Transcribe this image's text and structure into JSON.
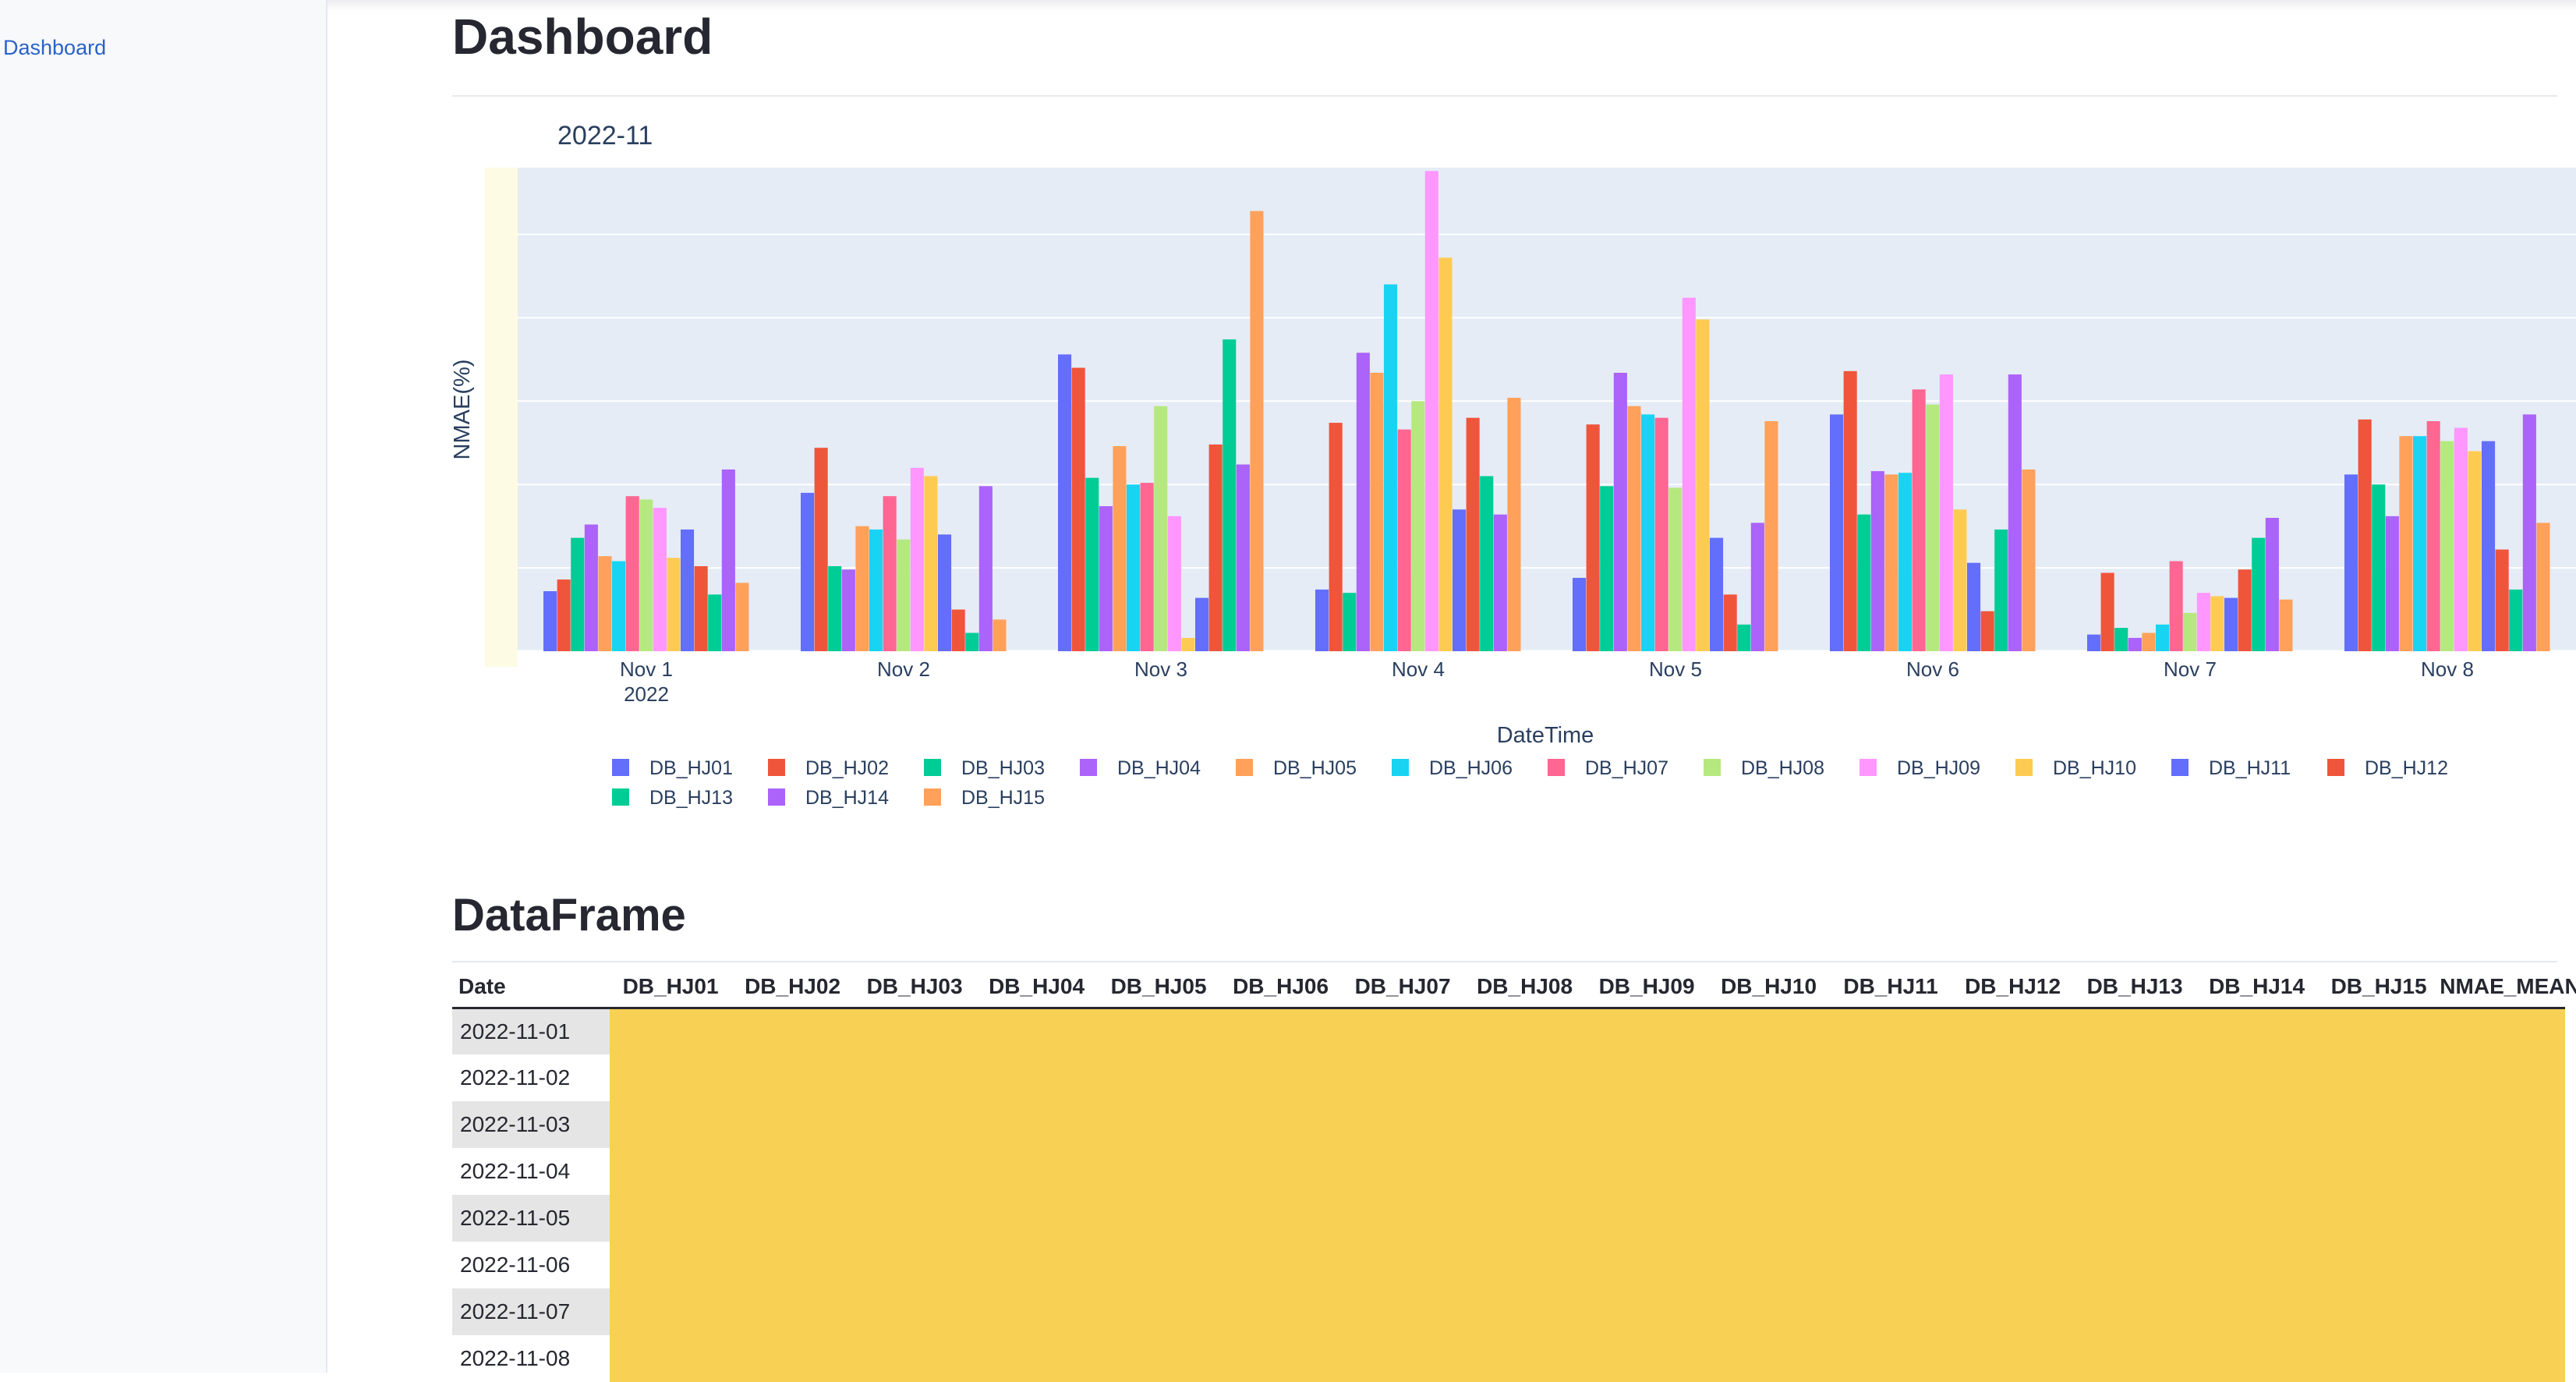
{
  "sidebar": {
    "items": [
      {
        "label": "Dashboard"
      }
    ]
  },
  "page": {
    "title": "Dashboard",
    "section_title": "DataFrame"
  },
  "chart_data": {
    "type": "bar",
    "title": "2022-11",
    "xlabel": "DateTime",
    "ylabel": "NMAE(%)",
    "grid": true,
    "legend_position": "bottom",
    "categories": [
      "Nov 1\n2022",
      "Nov 2",
      "Nov 3",
      "Nov 4",
      "Nov 5",
      "Nov 6",
      "Nov 7",
      "Nov 8"
    ],
    "ylim": [
      0,
      29
    ],
    "series": [
      {
        "name": "DB_HJ01",
        "color": "#636efa",
        "values": [
          3.6,
          9.5,
          17.8,
          3.7,
          4.4,
          14.2,
          1.0,
          10.6
        ]
      },
      {
        "name": "DB_HJ02",
        "color": "#ef553b",
        "values": [
          4.3,
          12.2,
          17.0,
          13.7,
          13.6,
          16.8,
          4.7,
          13.9
        ]
      },
      {
        "name": "DB_HJ03",
        "color": "#00cc96",
        "values": [
          6.8,
          5.1,
          10.4,
          3.5,
          9.9,
          8.2,
          1.4,
          10.0
        ]
      },
      {
        "name": "DB_HJ04",
        "color": "#ab63fa",
        "values": [
          7.6,
          4.9,
          8.7,
          17.9,
          16.7,
          10.8,
          0.8,
          8.1
        ]
      },
      {
        "name": "DB_HJ05",
        "color": "#ffa15a",
        "values": [
          5.7,
          7.5,
          12.3,
          16.7,
          14.7,
          10.6,
          1.1,
          12.9
        ]
      },
      {
        "name": "DB_HJ06",
        "color": "#19d3f3",
        "values": [
          5.4,
          7.3,
          10.0,
          22.0,
          14.2,
          10.7,
          1.6,
          12.9
        ]
      },
      {
        "name": "DB_HJ07",
        "color": "#ff6692",
        "values": [
          9.3,
          9.3,
          10.1,
          13.3,
          14.0,
          15.7,
          5.4,
          13.8
        ]
      },
      {
        "name": "DB_HJ08",
        "color": "#b6e880",
        "values": [
          9.1,
          6.7,
          14.7,
          15.0,
          9.8,
          14.8,
          2.3,
          12.6
        ]
      },
      {
        "name": "DB_HJ09",
        "color": "#ff97ff",
        "values": [
          8.6,
          11.0,
          8.1,
          28.8,
          21.2,
          16.6,
          3.5,
          13.4
        ]
      },
      {
        "name": "DB_HJ10",
        "color": "#fecb52",
        "values": [
          5.6,
          10.5,
          0.8,
          23.6,
          19.9,
          8.5,
          3.3,
          12.0
        ]
      },
      {
        "name": "DB_HJ11",
        "color": "#636efa",
        "values": [
          7.3,
          7.0,
          3.2,
          8.5,
          6.8,
          5.3,
          3.2,
          12.6
        ]
      },
      {
        "name": "DB_HJ12",
        "color": "#ef553b",
        "values": [
          5.1,
          2.5,
          12.4,
          14.0,
          3.4,
          2.4,
          4.9,
          6.1
        ]
      },
      {
        "name": "DB_HJ13",
        "color": "#00cc96",
        "values": [
          3.4,
          1.1,
          18.7,
          10.5,
          1.6,
          7.3,
          6.8,
          3.7
        ]
      },
      {
        "name": "DB_HJ14",
        "color": "#ab63fa",
        "values": [
          10.9,
          9.9,
          11.2,
          8.2,
          7.7,
          16.6,
          8.0,
          14.2
        ]
      },
      {
        "name": "DB_HJ15",
        "color": "#ffa15a",
        "values": [
          4.1,
          1.9,
          26.4,
          15.2,
          13.8,
          10.9,
          3.1,
          7.7
        ]
      }
    ]
  },
  "table": {
    "headers": [
      "Date",
      "DB_HJ01",
      "DB_HJ02",
      "DB_HJ03",
      "DB_HJ04",
      "DB_HJ05",
      "DB_HJ06",
      "DB_HJ07",
      "DB_HJ08",
      "DB_HJ09",
      "DB_HJ10",
      "DB_HJ11",
      "DB_HJ12",
      "DB_HJ13",
      "DB_HJ14",
      "DB_HJ15",
      "NMAE_MEAN"
    ],
    "rows": [
      {
        "date": "2022-11-01"
      },
      {
        "date": "2022-11-02"
      },
      {
        "date": "2022-11-03"
      },
      {
        "date": "2022-11-04"
      },
      {
        "date": "2022-11-05"
      },
      {
        "date": "2022-11-06"
      },
      {
        "date": "2022-11-07"
      },
      {
        "date": "2022-11-08"
      }
    ],
    "highlight_color": "#f8d154"
  }
}
